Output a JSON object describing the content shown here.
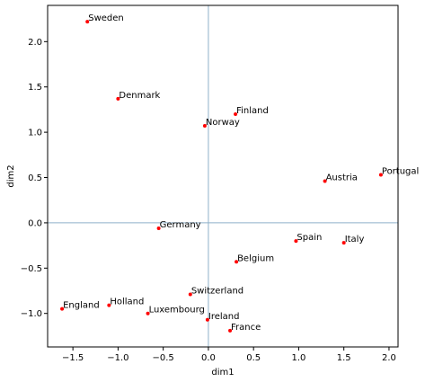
{
  "chart_data": {
    "type": "scatter",
    "xlabel": "dim1",
    "ylabel": "dim2",
    "xlim": [
      -1.78,
      2.1
    ],
    "ylim": [
      -1.37,
      2.4
    ],
    "x_ticks": [
      -1.5,
      -1.0,
      -0.5,
      0.0,
      0.5,
      1.0,
      1.5,
      2.0
    ],
    "x_tick_labels": [
      "−1.5",
      "−1.0",
      "−0.5",
      "0.0",
      "0.5",
      "1.0",
      "1.5",
      "2.0"
    ],
    "y_ticks": [
      -1.0,
      -0.5,
      0.0,
      0.5,
      1.0,
      1.5,
      2.0
    ],
    "y_tick_labels": [
      "−1.0",
      "−0.5",
      "0.0",
      "0.5",
      "1.0",
      "1.5",
      "2.0"
    ],
    "reference_lines": {
      "x": 0,
      "y": 0
    },
    "point_color": "#ff0000",
    "reference_line_color": "#8fb1c9",
    "points": [
      {
        "label": "Sweden",
        "x": -1.34,
        "y": 2.22
      },
      {
        "label": "Denmark",
        "x": -1.0,
        "y": 1.37
      },
      {
        "label": "Finland",
        "x": 0.3,
        "y": 1.2
      },
      {
        "label": "Norway",
        "x": -0.04,
        "y": 1.07
      },
      {
        "label": "Portugal",
        "x": 1.91,
        "y": 0.53
      },
      {
        "label": "Austria",
        "x": 1.29,
        "y": 0.46
      },
      {
        "label": "Germany",
        "x": -0.55,
        "y": -0.06
      },
      {
        "label": "Spain",
        "x": 0.97,
        "y": -0.2
      },
      {
        "label": "Italy",
        "x": 1.5,
        "y": -0.22
      },
      {
        "label": "Belgium",
        "x": 0.31,
        "y": -0.43
      },
      {
        "label": "Switzerland",
        "x": -0.2,
        "y": -0.79
      },
      {
        "label": "Holland",
        "x": -1.1,
        "y": -0.91
      },
      {
        "label": "England",
        "x": -1.62,
        "y": -0.95
      },
      {
        "label": "Luxembourg",
        "x": -0.67,
        "y": -1.0
      },
      {
        "label": "Ireland",
        "x": -0.01,
        "y": -1.07
      },
      {
        "label": "France",
        "x": 0.24,
        "y": -1.19
      }
    ]
  }
}
